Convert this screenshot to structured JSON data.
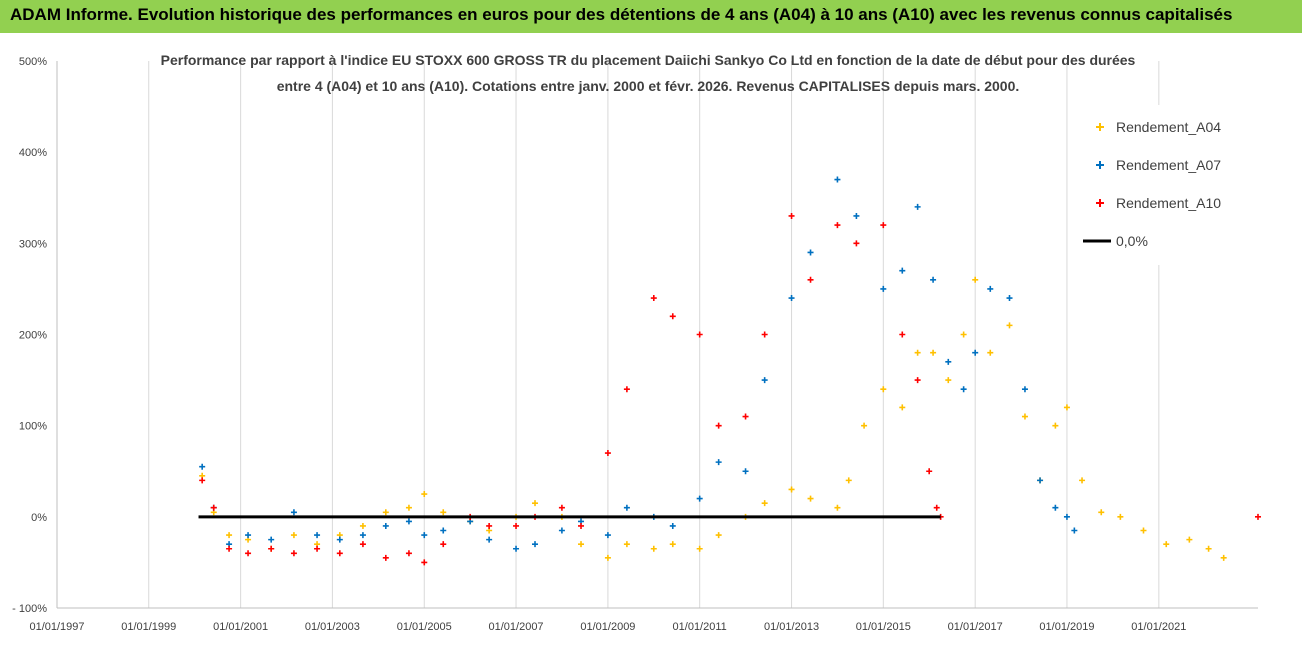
{
  "banner": {
    "title": "ADAM Informe. Evolution historique des performances en euros pour des détentions de 4 ans (A04) à 10 ans (A10) avec les revenus connus capitalisés",
    "background": "#92d050"
  },
  "chart_data": {
    "type": "scatter",
    "title_lines": [
      "Performance par rapport à l'indice EU STOXX 600 GROSS TR  du placement Daiichi Sankyo Co Ltd en fonction de la date de début pour des durées",
      "entre 4 (A04) et 10 ans (A10). Cotations entre janv. 2000 et févr. 2026. Revenus CAPITALISES depuis mars. 2000."
    ],
    "xlabel": "",
    "ylabel": "",
    "x_tick_labels": [
      "01/01/1997",
      "01/01/1999",
      "01/01/2001",
      "01/01/2003",
      "01/01/2005",
      "01/01/2007",
      "01/01/2009",
      "01/01/2011",
      "01/01/2013",
      "01/01/2015",
      "01/01/2017",
      "01/01/2019",
      "01/01/2021"
    ],
    "y_tick_labels": [
      "- 100%",
      "0%",
      "100%",
      "200%",
      "300%",
      "400%",
      "500%"
    ],
    "y_ticks": [
      -100,
      0,
      100,
      200,
      300,
      400,
      500
    ],
    "xlim": [
      "1997-01-01",
      "2023-03-01"
    ],
    "ylim": [
      -100,
      500
    ],
    "grid": "vertical",
    "legend_position": "top-right",
    "series": [
      {
        "name": "Rendement_A04",
        "color": "#ffc000",
        "marker": "+",
        "points": [
          [
            "2000-03-01",
            45
          ],
          [
            "2000-06-01",
            5
          ],
          [
            "2000-10-01",
            -20
          ],
          [
            "2001-03-01",
            -25
          ],
          [
            "2001-09-01",
            -35
          ],
          [
            "2002-03-01",
            -20
          ],
          [
            "2002-09-01",
            -30
          ],
          [
            "2003-03-01",
            -20
          ],
          [
            "2003-09-01",
            -10
          ],
          [
            "2004-03-01",
            5
          ],
          [
            "2004-09-01",
            10
          ],
          [
            "2005-01-01",
            25
          ],
          [
            "2005-06-01",
            5
          ],
          [
            "2006-01-01",
            -5
          ],
          [
            "2006-06-01",
            -15
          ],
          [
            "2007-01-01",
            0
          ],
          [
            "2007-06-01",
            15
          ],
          [
            "2008-01-01",
            0
          ],
          [
            "2008-06-01",
            -30
          ],
          [
            "2009-01-01",
            -45
          ],
          [
            "2009-06-01",
            -30
          ],
          [
            "2010-01-01",
            -35
          ],
          [
            "2010-06-01",
            -30
          ],
          [
            "2011-01-01",
            -35
          ],
          [
            "2011-06-01",
            -20
          ],
          [
            "2012-01-01",
            0
          ],
          [
            "2012-06-01",
            15
          ],
          [
            "2013-01-01",
            30
          ],
          [
            "2013-06-01",
            20
          ],
          [
            "2014-01-01",
            10
          ],
          [
            "2014-04-01",
            40
          ],
          [
            "2014-08-01",
            100
          ],
          [
            "2015-01-01",
            140
          ],
          [
            "2015-06-01",
            120
          ],
          [
            "2015-10-01",
            180
          ],
          [
            "2016-02-01",
            180
          ],
          [
            "2016-06-01",
            150
          ],
          [
            "2016-10-01",
            200
          ],
          [
            "2017-01-01",
            260
          ],
          [
            "2017-05-01",
            180
          ],
          [
            "2017-10-01",
            210
          ],
          [
            "2018-02-01",
            110
          ],
          [
            "2018-06-01",
            40
          ],
          [
            "2018-10-01",
            100
          ],
          [
            "2019-01-01",
            120
          ],
          [
            "2019-05-01",
            40
          ],
          [
            "2019-10-01",
            5
          ],
          [
            "2020-03-01",
            0
          ],
          [
            "2020-09-01",
            -15
          ],
          [
            "2021-03-01",
            -30
          ],
          [
            "2021-09-01",
            -25
          ],
          [
            "2022-02-01",
            -35
          ],
          [
            "2022-06-01",
            -45
          ]
        ]
      },
      {
        "name": "Rendement_A07",
        "color": "#0070c0",
        "marker": "+",
        "points": [
          [
            "2000-03-01",
            55
          ],
          [
            "2000-06-01",
            10
          ],
          [
            "2000-10-01",
            -30
          ],
          [
            "2001-03-01",
            -20
          ],
          [
            "2001-09-01",
            -25
          ],
          [
            "2002-03-01",
            5
          ],
          [
            "2002-09-01",
            -20
          ],
          [
            "2003-03-01",
            -25
          ],
          [
            "2003-09-01",
            -20
          ],
          [
            "2004-03-01",
            -10
          ],
          [
            "2004-09-01",
            -5
          ],
          [
            "2005-01-01",
            -20
          ],
          [
            "2005-06-01",
            -15
          ],
          [
            "2006-01-01",
            -5
          ],
          [
            "2006-06-01",
            -25
          ],
          [
            "2007-01-01",
            -35
          ],
          [
            "2007-06-01",
            -30
          ],
          [
            "2008-01-01",
            -15
          ],
          [
            "2008-06-01",
            -5
          ],
          [
            "2009-01-01",
            -20
          ],
          [
            "2009-06-01",
            10
          ],
          [
            "2010-01-01",
            0
          ],
          [
            "2010-06-01",
            -10
          ],
          [
            "2011-01-01",
            20
          ],
          [
            "2011-06-01",
            60
          ],
          [
            "2012-01-01",
            50
          ],
          [
            "2012-06-01",
            150
          ],
          [
            "2013-01-01",
            240
          ],
          [
            "2013-06-01",
            290
          ],
          [
            "2014-01-01",
            370
          ],
          [
            "2014-06-01",
            330
          ],
          [
            "2015-01-01",
            250
          ],
          [
            "2015-06-01",
            270
          ],
          [
            "2015-10-01",
            340
          ],
          [
            "2016-02-01",
            260
          ],
          [
            "2016-06-01",
            170
          ],
          [
            "2016-10-01",
            140
          ],
          [
            "2017-01-01",
            180
          ],
          [
            "2017-05-01",
            250
          ],
          [
            "2017-10-01",
            240
          ],
          [
            "2018-02-01",
            140
          ],
          [
            "2018-06-01",
            40
          ],
          [
            "2018-10-01",
            10
          ],
          [
            "2019-01-01",
            0
          ],
          [
            "2019-03-01",
            -15
          ]
        ]
      },
      {
        "name": "Rendement_A10",
        "color": "#ff0000",
        "marker": "+",
        "points": [
          [
            "2000-03-01",
            40
          ],
          [
            "2000-06-01",
            10
          ],
          [
            "2000-10-01",
            -35
          ],
          [
            "2001-03-01",
            -40
          ],
          [
            "2001-09-01",
            -35
          ],
          [
            "2002-03-01",
            -40
          ],
          [
            "2002-09-01",
            -35
          ],
          [
            "2003-03-01",
            -40
          ],
          [
            "2003-09-01",
            -30
          ],
          [
            "2004-03-01",
            -45
          ],
          [
            "2004-09-01",
            -40
          ],
          [
            "2005-01-01",
            -50
          ],
          [
            "2005-06-01",
            -30
          ],
          [
            "2006-01-01",
            0
          ],
          [
            "2006-06-01",
            -10
          ],
          [
            "2007-01-01",
            -10
          ],
          [
            "2007-06-01",
            0
          ],
          [
            "2008-01-01",
            10
          ],
          [
            "2008-06-01",
            -10
          ],
          [
            "2009-01-01",
            70
          ],
          [
            "2009-06-01",
            140
          ],
          [
            "2010-01-01",
            240
          ],
          [
            "2010-06-01",
            220
          ],
          [
            "2011-01-01",
            200
          ],
          [
            "2011-06-01",
            100
          ],
          [
            "2012-01-01",
            110
          ],
          [
            "2012-06-01",
            200
          ],
          [
            "2013-01-01",
            330
          ],
          [
            "2013-06-01",
            260
          ],
          [
            "2014-01-01",
            320
          ],
          [
            "2014-06-01",
            300
          ],
          [
            "2015-01-01",
            320
          ],
          [
            "2015-06-01",
            200
          ],
          [
            "2015-10-01",
            150
          ],
          [
            "2016-01-01",
            50
          ],
          [
            "2016-03-01",
            10
          ],
          [
            "2016-04-01",
            0
          ],
          [
            "2023-03-01",
            0
          ]
        ]
      },
      {
        "name": "0,0%",
        "color": "#000000",
        "marker": "line",
        "points": [
          [
            "2000-02-01",
            0
          ],
          [
            "2016-04-01",
            0
          ]
        ]
      }
    ]
  }
}
